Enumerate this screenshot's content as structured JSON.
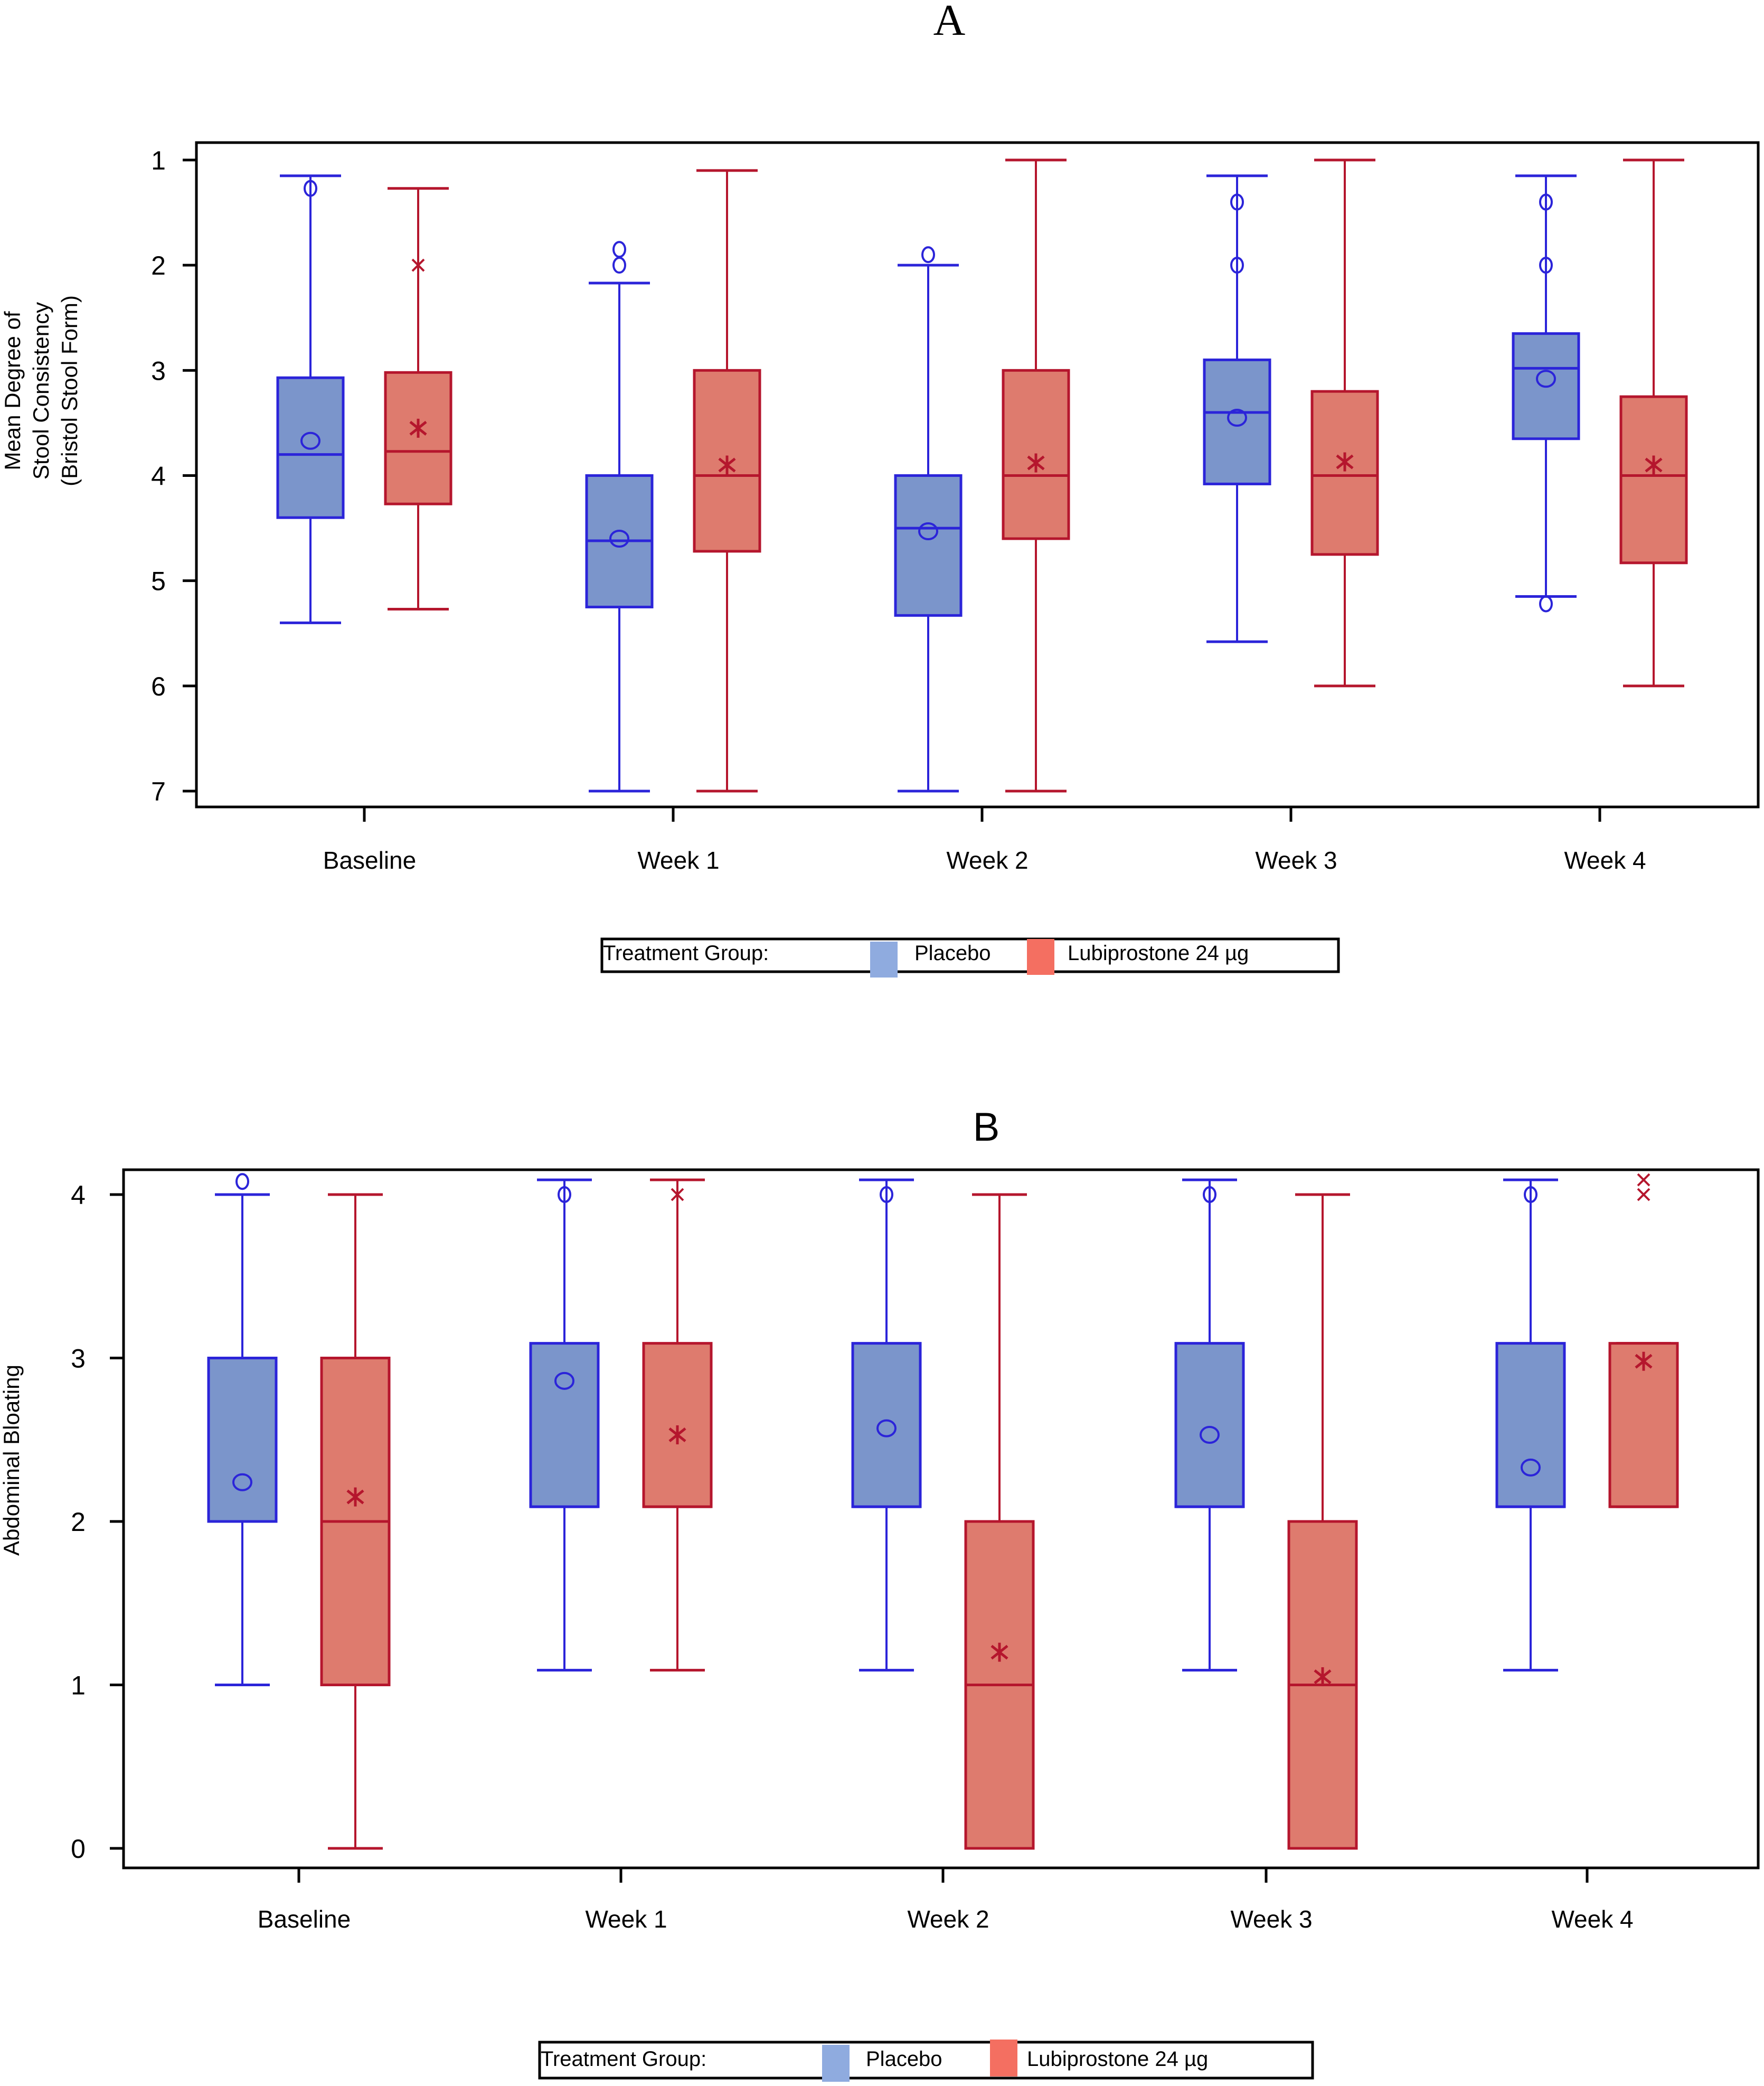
{
  "chart_data": [
    {
      "type": "boxplot",
      "panel": "A",
      "title": "A",
      "xlabel": "",
      "ylabel": [
        "Mean Degree of",
        "Stool Consistency",
        "(Bristol Stool Form)"
      ],
      "y_reversed": true,
      "ylim": [
        1,
        7
      ],
      "yticks": [
        1,
        2,
        3,
        4,
        5,
        6,
        7
      ],
      "grid": false,
      "categories": [
        "Baseline",
        "Week 1",
        "Week 2",
        "Week 3",
        "Week 4"
      ],
      "legend": {
        "title": "Treatment Group:",
        "placement": "bottom-center",
        "entries": [
          "Placebo",
          "Lubiprostone 24 µg"
        ]
      },
      "series": [
        {
          "name": "Placebo",
          "mean_marker": "circle",
          "boxes": [
            {
              "whisker_low": 1.15,
              "q1": 3.07,
              "median": 3.8,
              "q3": 4.4,
              "whisker_high": 5.4,
              "mean": 3.67,
              "outliers": [
                1.27
              ]
            },
            {
              "whisker_low": 2.17,
              "q1": 4.0,
              "median": 4.62,
              "q3": 5.25,
              "whisker_high": 7.0,
              "mean": 4.6,
              "outliers": [
                1.85,
                2.0
              ]
            },
            {
              "whisker_low": 2.0,
              "q1": 4.0,
              "median": 4.5,
              "q3": 5.33,
              "whisker_high": 7.0,
              "mean": 4.53,
              "outliers": [
                1.9
              ]
            },
            {
              "whisker_low": 1.15,
              "q1": 2.9,
              "median": 3.4,
              "q3": 4.08,
              "whisker_high": 5.58,
              "mean": 3.45,
              "outliers": [
                1.4,
                2.0
              ]
            },
            {
              "whisker_low": 1.15,
              "q1": 2.65,
              "median": 2.98,
              "q3": 3.65,
              "whisker_high": 5.15,
              "mean": 3.08,
              "outliers": [
                1.4,
                2.0,
                5.22
              ]
            }
          ]
        },
        {
          "name": "Lubiprostone 24 µg",
          "mean_marker": "asterisk",
          "boxes": [
            {
              "whisker_low": 1.27,
              "q1": 3.02,
              "median": 3.77,
              "q3": 4.27,
              "whisker_high": 5.27,
              "mean": 3.55,
              "outliers": [
                2.0
              ]
            },
            {
              "whisker_low": 1.1,
              "q1": 3.0,
              "median": 4.0,
              "q3": 4.72,
              "whisker_high": 7.0,
              "mean": 3.9,
              "outliers": []
            },
            {
              "whisker_low": 1.0,
              "q1": 3.0,
              "median": 4.0,
              "q3": 4.6,
              "whisker_high": 7.0,
              "mean": 3.88,
              "outliers": []
            },
            {
              "whisker_low": 1.0,
              "q1": 3.2,
              "median": 4.0,
              "q3": 4.75,
              "whisker_high": 6.0,
              "mean": 3.87,
              "outliers": []
            },
            {
              "whisker_low": 1.0,
              "q1": 3.25,
              "median": 4.0,
              "q3": 4.83,
              "whisker_high": 6.0,
              "mean": 3.9,
              "outliers": []
            }
          ]
        }
      ]
    },
    {
      "type": "boxplot",
      "panel": "B",
      "title": "B",
      "xlabel": "",
      "ylabel": [
        "Abdominal Bloating"
      ],
      "y_reversed": false,
      "ylim": [
        0,
        4
      ],
      "yticks": [
        0,
        1,
        2,
        3,
        4
      ],
      "grid": false,
      "categories": [
        "Baseline",
        "Week 1",
        "Week 2",
        "Week 3",
        "Week 4"
      ],
      "legend": {
        "title": "Treatment Group:",
        "placement": "bottom-center",
        "entries": [
          "Placebo",
          "Lubiprostone 24 µg"
        ]
      },
      "series": [
        {
          "name": "Placebo",
          "mean_marker": "circle",
          "boxes": [
            {
              "whisker_low": 1.0,
              "q1": 2.0,
              "median": 2.0,
              "q3": 3.0,
              "whisker_high": 4.0,
              "mean": 2.24,
              "outliers": [
                4.08
              ]
            },
            {
              "whisker_low": 1.09,
              "q1": 2.09,
              "median": 2.09,
              "q3": 3.09,
              "whisker_high": 4.09,
              "mean": 2.86,
              "outliers": [
                4.0
              ]
            },
            {
              "whisker_low": 1.09,
              "q1": 2.09,
              "median": 2.09,
              "q3": 3.09,
              "whisker_high": 4.09,
              "mean": 2.57,
              "outliers": [
                4.0
              ]
            },
            {
              "whisker_low": 1.09,
              "q1": 2.09,
              "median": 2.09,
              "q3": 3.09,
              "whisker_high": 4.09,
              "mean": 2.53,
              "outliers": [
                4.0
              ]
            },
            {
              "whisker_low": 1.09,
              "q1": 2.09,
              "median": 2.09,
              "q3": 3.09,
              "whisker_high": 4.09,
              "mean": 2.33,
              "outliers": [
                4.0
              ]
            }
          ]
        },
        {
          "name": "Lubiprostone 24 µg",
          "mean_marker": "asterisk",
          "boxes": [
            {
              "whisker_low": 0.0,
              "q1": 1.0,
              "median": 2.0,
              "q3": 3.0,
              "whisker_high": 4.0,
              "mean": 2.15,
              "outliers": []
            },
            {
              "whisker_low": 1.09,
              "q1": 2.09,
              "median": 2.09,
              "q3": 3.09,
              "whisker_high": 4.09,
              "mean": 2.53,
              "outliers": [
                4.0
              ]
            },
            {
              "whisker_low": 0.0,
              "q1": 0.0,
              "median": 1.0,
              "q3": 2.0,
              "whisker_high": 4.0,
              "mean": 1.2,
              "outliers": []
            },
            {
              "whisker_low": 0.0,
              "q1": 0.0,
              "median": 1.0,
              "q3": 2.0,
              "whisker_high": 4.0,
              "mean": 1.05,
              "outliers": []
            },
            {
              "whisker_low": 2.09,
              "q1": 2.09,
              "median": 2.09,
              "q3": 3.09,
              "whisker_high": 3.09,
              "mean": 2.98,
              "outliers": [
                4.0,
                4.09
              ]
            }
          ]
        }
      ]
    }
  ],
  "colors": {
    "placebo_line": "#2b24d9",
    "placebo_fill": "#7b95cb",
    "placebo_legend": "#8fabdf",
    "lubi_line": "#b5162d",
    "lubi_fill": "#de7b6e",
    "lubi_legend": "#f46f61"
  }
}
